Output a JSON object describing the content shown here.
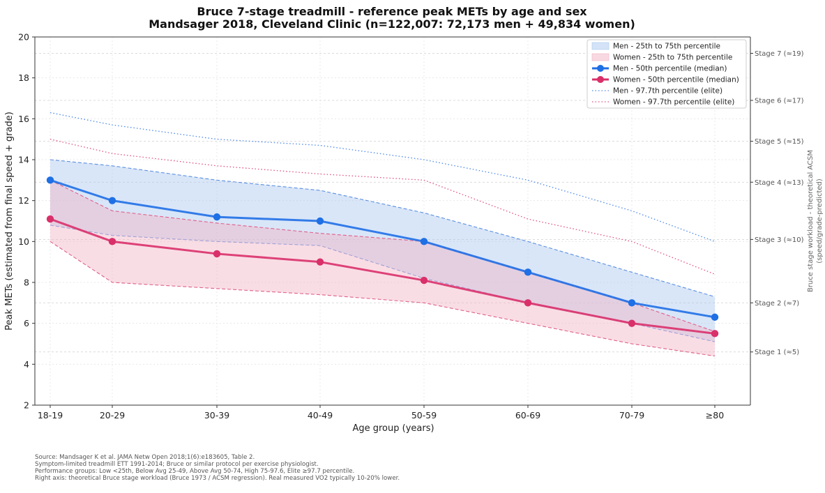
{
  "chart_data": {
    "type": "line",
    "title": "Bruce 7-stage treadmill - reference peak METs by age and sex",
    "subtitle": "Mandsager 2018, Cleveland Clinic (n=122,007: 72,173 men + 49,834 women)",
    "xlabel": "Age group (years)",
    "ylabel": "Peak METs (estimated from final speed + grade)",
    "right_ylabel": [
      "Bruce stage workload - theoretical ACSM",
      "(speed/grade-predicted)"
    ],
    "ylim": [
      2,
      20
    ],
    "yticks": [
      2,
      4,
      6,
      8,
      10,
      12,
      14,
      16,
      18,
      20
    ],
    "grid": true,
    "legend_position": "top-right",
    "categories": [
      "18-19",
      "20-29",
      "30-39",
      "40-49",
      "50-59",
      "60-69",
      "70-79",
      "≥80"
    ],
    "bands": [
      {
        "name": "Men - 25th to 75th percentile",
        "color": "#aac8f0",
        "lower": [
          10.8,
          10.3,
          10.0,
          9.8,
          8.2,
          7.0,
          6.0,
          5.1
        ],
        "upper": [
          14.0,
          13.7,
          13.0,
          12.5,
          11.4,
          10.0,
          8.5,
          7.3
        ],
        "edge_color": "#5b8fe0"
      },
      {
        "name": "Women - 25th to 75th percentile",
        "color": "#f2b3c6",
        "lower": [
          10.0,
          8.0,
          7.7,
          7.4,
          7.0,
          6.0,
          5.0,
          4.4
        ],
        "upper": [
          13.0,
          11.5,
          10.9,
          10.4,
          10.0,
          8.5,
          7.0,
          5.6
        ],
        "edge_color": "#e06088"
      }
    ],
    "series": [
      {
        "name": "Men - 50th percentile (median)",
        "color": "#1f6fe5",
        "style": "solid-markers",
        "values": [
          13.0,
          12.0,
          11.2,
          11.0,
          10.0,
          8.5,
          7.0,
          6.3
        ]
      },
      {
        "name": "Women - 50th percentile (median)",
        "color": "#d9306a",
        "style": "solid-markers",
        "values": [
          11.1,
          10.0,
          9.4,
          9.0,
          8.1,
          7.0,
          6.0,
          5.5
        ]
      },
      {
        "name": "Men - 97.7th percentile (elite)",
        "color": "#4a86e8",
        "style": "dotted",
        "values": [
          16.3,
          15.7,
          15.0,
          14.7,
          14.0,
          13.0,
          11.5,
          10.0
        ]
      },
      {
        "name": "Women - 97.7th percentile (elite)",
        "color": "#e0507e",
        "style": "dotted",
        "values": [
          15.0,
          14.3,
          13.7,
          13.3,
          13.0,
          11.1,
          10.0,
          8.4
        ]
      }
    ],
    "stages": [
      {
        "label": "Stage 1 (≈5)",
        "value": 4.6
      },
      {
        "label": "Stage 2 (≈7)",
        "value": 7.0
      },
      {
        "label": "Stage 3 (≈10)",
        "value": 10.1
      },
      {
        "label": "Stage 4 (≈13)",
        "value": 12.9
      },
      {
        "label": "Stage 5 (≈15)",
        "value": 14.9
      },
      {
        "label": "Stage 6 (≈17)",
        "value": 16.9
      },
      {
        "label": "Stage 7 (≈19)",
        "value": 19.2
      }
    ],
    "notes": [
      "Source: Mandsager K et al. JAMA Netw Open 2018;1(6):e183605, Table 2.",
      "Symptom-limited treadmill ETT 1991-2014; Bruce or similar protocol per exercise physiologist.",
      "Performance groups: Low <25th, Below Avg 25-49, Above Avg 50-74, High 75-97.6, Elite ≥97.7 percentile.",
      "Right axis: theoretical Bruce stage workload (Bruce 1973 / ACSM regression). Real measured VO2 typically 10-20% lower."
    ]
  }
}
